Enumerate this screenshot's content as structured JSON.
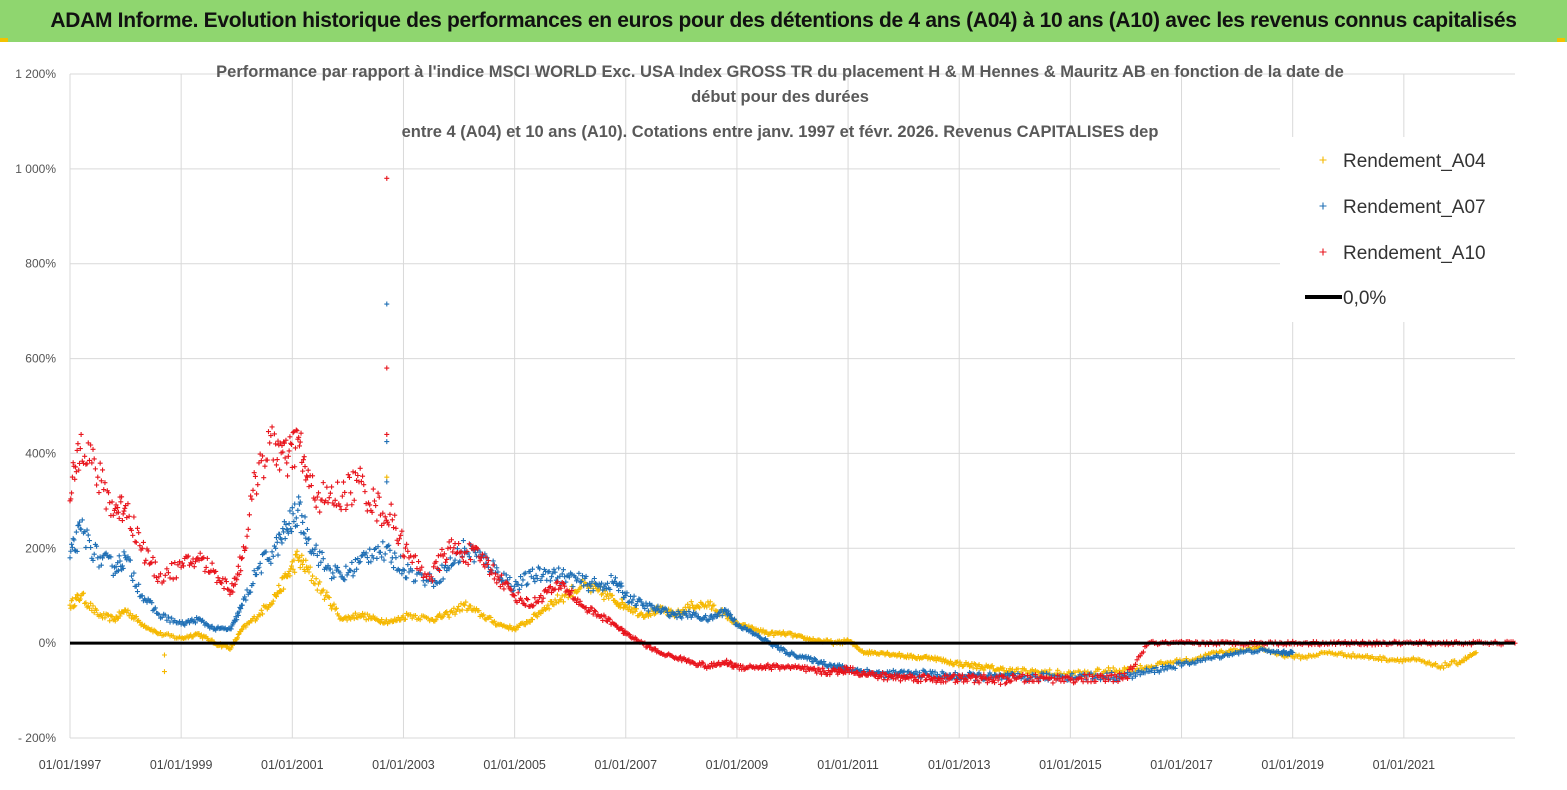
{
  "banner": {
    "title": "ADAM Informe. Evolution historique des performances en euros pour des détentions de 4 ans (A04) à 10 ans (A10) avec les revenus connus capitalisés",
    "color": "#8fd66f"
  },
  "chart_data": {
    "type": "scatter",
    "title_lines": [
      "Performance par rapport à l'indice MSCI WORLD Exc. USA Index GROSS TR  du placement H & M Hennes & Mauritz AB en fonction de la date de",
      "début pour des durées",
      "entre 4 (A04) et 10 ans (A10). Cotations entre janv. 1997 et févr. 2026. Revenus CAPITALISES dep"
    ],
    "xlabel": "",
    "ylabel": "",
    "x_range": [
      1997.0,
      2023.0
    ],
    "ylim": [
      -200,
      1200
    ],
    "y_ticks": [
      -200,
      0,
      200,
      400,
      600,
      800,
      1000,
      1200
    ],
    "y_tick_labels": [
      "- 200%",
      "0%",
      "200%",
      "400%",
      "600%",
      "800%",
      "1 000%",
      "1 200%"
    ],
    "x_ticks": [
      1997,
      1999,
      2001,
      2003,
      2005,
      2007,
      2009,
      2011,
      2013,
      2015,
      2017,
      2019,
      2021
    ],
    "x_tick_labels": [
      "01/01/1997",
      "01/01/1999",
      "01/01/2001",
      "01/01/2003",
      "01/01/2005",
      "01/01/2007",
      "01/01/2009",
      "01/01/2011",
      "01/01/2013",
      "01/01/2015",
      "01/01/2017",
      "01/01/2019",
      "01/01/2021"
    ],
    "grid": true,
    "legend_position": "top-right",
    "legend": [
      {
        "label": "Rendement_A04",
        "color": "#f5b800",
        "marker": "+"
      },
      {
        "label": "Rendement_A07",
        "color": "#1f6fb5",
        "marker": "+"
      },
      {
        "label": "Rendement_A10",
        "color": "#e8141c",
        "marker": "+"
      },
      {
        "label": "0,0%",
        "color": "#000000",
        "marker": "line"
      }
    ],
    "series": [
      {
        "name": "Rendement_A04",
        "color": "#f5b800",
        "x": [
          1997.0,
          1997.2,
          1997.5,
          1997.8,
          1998.0,
          1998.3,
          1998.6,
          1999.0,
          1999.3,
          1999.6,
          1999.9,
          2000.1,
          2000.4,
          2000.7,
          2000.9,
          2001.1,
          2001.3,
          2001.6,
          2001.9,
          2002.2,
          2002.5,
          2002.8,
          2003.1,
          2003.5,
          2003.8,
          2004.1,
          2004.4,
          2004.7,
          2005.0,
          2005.3,
          2005.6,
          2005.9,
          2006.2,
          2006.5,
          2006.8,
          2007.0,
          2007.3,
          2007.6,
          2007.9,
          2008.2,
          2008.5,
          2008.8,
          2009.0,
          2009.3,
          2009.6,
          2009.9,
          2010.2,
          2010.5,
          2010.8,
          2011.0,
          2011.3,
          2011.6,
          2011.9,
          2012.2,
          2012.5,
          2012.8,
          2013.1,
          2013.4,
          2013.7,
          2014.0,
          2014.4,
          2014.8,
          2015.2,
          2015.6,
          2016.0,
          2016.4,
          2016.8,
          2017.2,
          2017.6,
          2018.0,
          2018.4,
          2018.8,
          2019.2,
          2019.6,
          2020.0,
          2020.4,
          2020.8,
          2021.2,
          2021.6,
          2022.0,
          2022.3
        ],
        "y": [
          80,
          100,
          60,
          50,
          70,
          40,
          20,
          10,
          20,
          0,
          -10,
          30,
          60,
          100,
          140,
          180,
          150,
          100,
          50,
          60,
          50,
          45,
          60,
          50,
          60,
          80,
          60,
          40,
          30,
          50,
          80,
          100,
          120,
          110,
          90,
          80,
          60,
          70,
          60,
          80,
          80,
          60,
          40,
          30,
          20,
          20,
          10,
          5,
          0,
          5,
          -20,
          -20,
          -25,
          -30,
          -30,
          -40,
          -45,
          -50,
          -55,
          -60,
          -60,
          -65,
          -65,
          -60,
          -55,
          -50,
          -40,
          -35,
          -20,
          -15,
          -10,
          -25,
          -30,
          -20,
          -25,
          -30,
          -35,
          -35,
          -50,
          -40,
          -20
        ]
      },
      {
        "name": "Rendement_A07",
        "color": "#1f6fb5",
        "x": [
          1997.0,
          1997.2,
          1997.5,
          1997.8,
          1998.0,
          1998.3,
          1998.6,
          1999.0,
          1999.3,
          1999.6,
          1999.9,
          2000.1,
          2000.4,
          2000.7,
          2000.9,
          2001.1,
          2001.3,
          2001.6,
          2001.9,
          2002.2,
          2002.5,
          2002.8,
          2003.1,
          2003.5,
          2003.8,
          2004.1,
          2004.4,
          2004.7,
          2005.0,
          2005.3,
          2005.6,
          2005.9,
          2006.2,
          2006.5,
          2006.8,
          2007.0,
          2007.3,
          2007.6,
          2007.9,
          2008.2,
          2008.5,
          2008.8,
          2009.0,
          2009.3,
          2009.6,
          2009.9,
          2010.2,
          2010.5,
          2010.8,
          2011.0,
          2011.3,
          2011.6,
          2011.9,
          2012.2,
          2012.5,
          2012.8,
          2013.1,
          2013.4,
          2013.7,
          2014.0,
          2014.4,
          2014.8,
          2015.2,
          2015.6,
          2016.0,
          2016.4,
          2016.8,
          2017.2,
          2017.6,
          2018.0,
          2018.4,
          2018.8,
          2019.0
        ],
        "y": [
          180,
          240,
          180,
          160,
          180,
          100,
          60,
          40,
          50,
          30,
          30,
          80,
          160,
          200,
          240,
          280,
          220,
          160,
          140,
          170,
          200,
          180,
          150,
          130,
          160,
          200,
          180,
          150,
          120,
          140,
          150,
          140,
          130,
          120,
          130,
          100,
          80,
          70,
          60,
          60,
          50,
          70,
          40,
          20,
          0,
          -20,
          -30,
          -40,
          -50,
          -55,
          -60,
          -65,
          -65,
          -65,
          -65,
          -70,
          -70,
          -70,
          -72,
          -72,
          -72,
          -70,
          -70,
          -70,
          -70,
          -60,
          -50,
          -40,
          -30,
          -20,
          -15,
          -20,
          -20
        ]
      },
      {
        "name": "Rendement_A10",
        "color": "#e8141c",
        "x": [
          1997.0,
          1997.2,
          1997.5,
          1997.8,
          1998.0,
          1998.3,
          1998.6,
          1999.0,
          1999.3,
          1999.6,
          1999.9,
          2000.1,
          2000.4,
          2000.7,
          2000.9,
          2001.1,
          2001.3,
          2001.6,
          2001.9,
          2002.2,
          2002.5,
          2002.8,
          2003.1,
          2003.5,
          2003.8,
          2004.1,
          2004.4,
          2004.7,
          2005.0,
          2005.3,
          2005.6,
          2005.9,
          2006.2,
          2006.5,
          2006.8,
          2007.0,
          2007.3,
          2007.6,
          2007.9,
          2008.2,
          2008.5,
          2008.8,
          2009.0,
          2009.3,
          2009.6,
          2009.9,
          2010.2,
          2010.5,
          2010.8,
          2011.0,
          2011.3,
          2011.6,
          2011.9,
          2012.2,
          2012.5,
          2012.8,
          2013.1,
          2013.4,
          2013.7,
          2014.0,
          2014.4,
          2014.8,
          2015.2,
          2015.6,
          2016.0,
          2016.4,
          2016.8,
          2017.2,
          2017.6,
          2018.0,
          2018.4,
          2018.8,
          2019.2,
          2019.6,
          2020.0,
          2020.4,
          2020.8,
          2021.2,
          2021.6,
          2022.0,
          2022.5,
          2023.0
        ],
        "y": [
          300,
          440,
          350,
          280,
          290,
          200,
          140,
          160,
          180,
          150,
          110,
          180,
          380,
          420,
          380,
          430,
          330,
          300,
          310,
          340,
          290,
          260,
          180,
          140,
          200,
          190,
          180,
          140,
          100,
          80,
          110,
          120,
          80,
          60,
          40,
          20,
          0,
          -20,
          -30,
          -40,
          -50,
          -40,
          -50,
          -50,
          -50,
          -50,
          -55,
          -60,
          -60,
          -55,
          -65,
          -70,
          -72,
          -72,
          -75,
          -75,
          -75,
          -75,
          -78,
          -75,
          -75,
          -75,
          -75,
          -75,
          -72,
          0,
          0,
          0,
          0,
          0,
          0,
          0,
          0,
          0,
          0,
          0,
          0,
          0,
          0,
          0,
          0,
          0
        ]
      }
    ],
    "outliers": [
      {
        "series": "Rendement_A10",
        "x": 2002.7,
        "y": 980
      },
      {
        "series": "Rendement_A07",
        "x": 2002.7,
        "y": 715
      },
      {
        "series": "Rendement_A10",
        "x": 2002.7,
        "y": 580
      },
      {
        "series": "Rendement_A10",
        "x": 2002.7,
        "y": 440
      },
      {
        "series": "Rendement_A07",
        "x": 2002.7,
        "y": 425
      },
      {
        "series": "Rendement_A04",
        "x": 2002.7,
        "y": 350
      },
      {
        "series": "Rendement_A07",
        "x": 2002.7,
        "y": 340
      },
      {
        "series": "Rendement_A04",
        "x": 1998.7,
        "y": -60
      },
      {
        "series": "Rendement_A04",
        "x": 1998.7,
        "y": -25
      }
    ],
    "baseline": {
      "label": "0,0%",
      "value": 0,
      "x_range": [
        1997.0,
        2023.0
      ],
      "color": "#000000"
    }
  }
}
